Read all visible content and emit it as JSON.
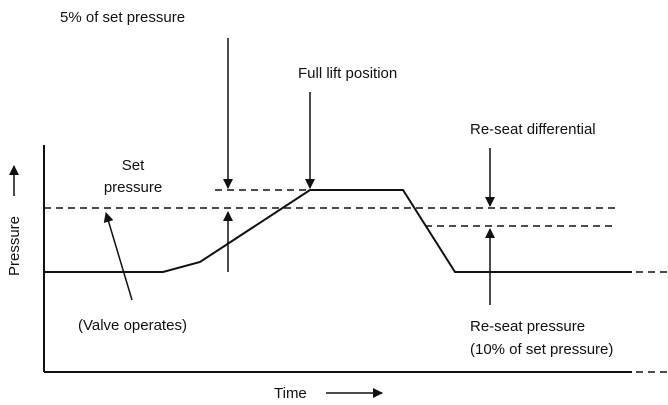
{
  "labels": {
    "five_percent": "5% of set pressure",
    "full_lift": "Full lift position",
    "reseat_differential": "Re-seat differential",
    "set_pressure_line1": "Set",
    "set_pressure_line2": "pressure",
    "valve_operates": "(Valve operates)",
    "reseat_pressure_line1": "Re-seat pressure",
    "reseat_pressure_line2": "(10% of set pressure)",
    "y_axis": "Pressure",
    "x_axis": "Time"
  }
}
